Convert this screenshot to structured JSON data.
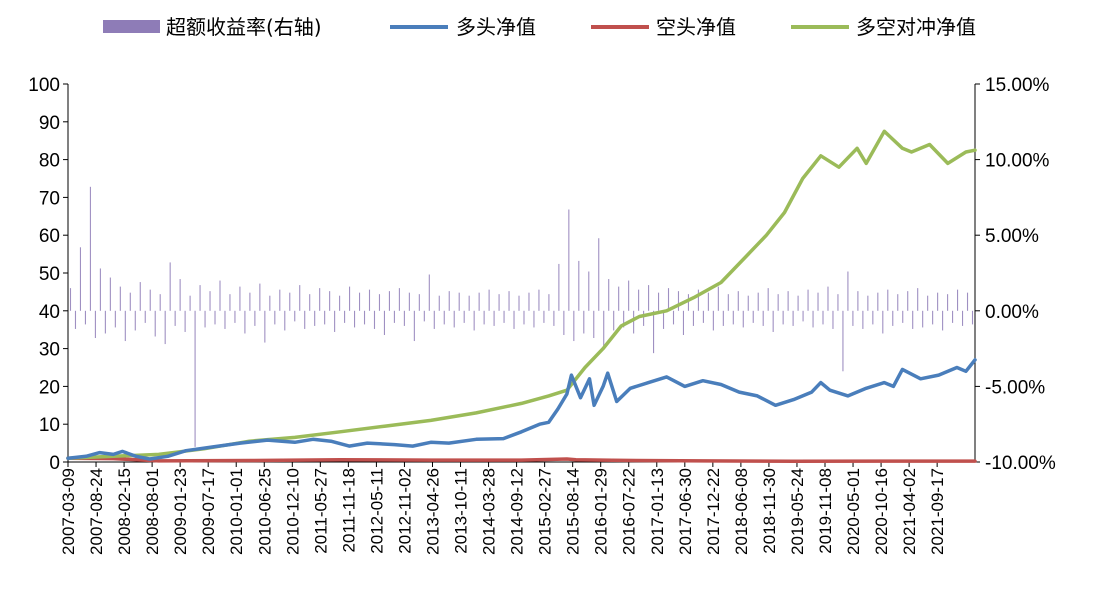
{
  "chart_data": {
    "type": "line",
    "legend_position": "top",
    "grid": false,
    "x_tick_labels": [
      "2007-03-09",
      "2007-08-24",
      "2008-02-15",
      "2008-08-01",
      "2009-01-23",
      "2009-07-17",
      "2010-01-01",
      "2010-06-25",
      "2010-12-10",
      "2011-05-27",
      "2011-11-18",
      "2012-05-11",
      "2012-11-02",
      "2013-04-26",
      "2013-10-11",
      "2014-03-28",
      "2014-09-12",
      "2015-02-27",
      "2015-08-14",
      "2016-01-29",
      "2016-07-22",
      "2017-01-13",
      "2017-06-30",
      "2017-12-22",
      "2018-06-08",
      "2018-11-30",
      "2019-05-24",
      "2019-11-08",
      "2020-05-01",
      "2020-10-16",
      "2021-04-02",
      "2021-09-17"
    ],
    "y_left": {
      "lim": [
        0,
        100
      ],
      "ticks": [
        "0",
        "10",
        "20",
        "30",
        "40",
        "50",
        "60",
        "70",
        "80",
        "90",
        "100"
      ]
    },
    "y_right": {
      "lim": [
        -10,
        15
      ],
      "ticks": [
        "-10.00%",
        "-5.00%",
        "0.00%",
        "5.00%",
        "10.00%",
        "15.00%"
      ]
    },
    "colors": {
      "excess": "#8e7cb7",
      "long": "#4a7ebb",
      "short": "#c0504d",
      "long_short": "#9bbb59"
    },
    "series": [
      {
        "name": "超额收益率(右轴)",
        "type": "bar",
        "axis": "right",
        "color": "#8e7cb7",
        "values": [
          1.5,
          -1.2,
          4.2,
          -0.9,
          8.2,
          -1.8,
          2.8,
          -1.5,
          2.2,
          -1.1,
          1.6,
          -2.0,
          1.2,
          -1.3,
          1.9,
          -0.8,
          1.4,
          -1.7,
          1.1,
          -2.2,
          3.2,
          -1.0,
          2.1,
          -1.4,
          1.0,
          -9.0,
          1.7,
          -1.1,
          1.3,
          -0.9,
          2.0,
          -1.2,
          1.1,
          -0.8,
          1.6,
          -1.5,
          1.2,
          -1.0,
          1.8,
          -2.1,
          1.0,
          -0.9,
          1.4,
          -1.3,
          1.2,
          -0.7,
          1.7,
          -1.2,
          1.1,
          -1.0,
          1.5,
          -0.9,
          1.3,
          -1.4,
          1.0,
          -0.8,
          1.6,
          -1.1,
          1.2,
          -0.9,
          1.4,
          -1.2,
          1.1,
          -1.6,
          1.3,
          -0.8,
          1.5,
          -1.0,
          1.2,
          -2.0,
          1.1,
          -0.7,
          2.4,
          -1.2,
          1.0,
          -0.9,
          1.3,
          -1.1,
          1.2,
          -0.8,
          1.0,
          -1.3,
          1.2,
          -0.9,
          1.4,
          -1.0,
          1.1,
          -0.8,
          1.3,
          -1.2,
          1.0,
          -0.9,
          1.2,
          -1.1,
          1.4,
          -0.8,
          1.1,
          -1.0,
          3.1,
          -1.6,
          6.7,
          -2.0,
          3.3,
          -1.5,
          2.6,
          -1.8,
          4.8,
          -2.4,
          2.1,
          -1.3,
          1.6,
          -1.1,
          2.0,
          -1.5,
          1.4,
          -1.0,
          1.7,
          -2.8,
          1.2,
          -1.2,
          1.5,
          -0.9,
          1.3,
          -1.6,
          1.1,
          -1.0,
          1.4,
          -0.8,
          1.2,
          -1.3,
          1.6,
          -1.0,
          1.1,
          -0.9,
          1.3,
          -1.1,
          1.0,
          -0.8,
          1.2,
          -1.0,
          1.5,
          -1.4,
          1.1,
          -0.9,
          1.3,
          -1.0,
          1.0,
          -0.7,
          1.4,
          -1.1,
          1.2,
          -0.9,
          1.6,
          -1.2,
          1.1,
          -4.0,
          2.6,
          -1.0,
          1.3,
          -1.2,
          1.0,
          -0.9,
          1.2,
          -1.5,
          1.4,
          -1.0,
          1.1,
          -0.8,
          1.3,
          -1.2,
          1.5,
          -1.1,
          1.0,
          -0.9,
          1.2,
          -1.3,
          1.1,
          -0.8,
          1.4,
          -1.0,
          1.2,
          -0.9
        ]
      },
      {
        "name": "多头净值",
        "type": "line",
        "axis": "left",
        "color": "#4a7ebb",
        "points": [
          [
            0,
            1
          ],
          [
            0.02,
            1.5
          ],
          [
            0.035,
            2.5
          ],
          [
            0.05,
            2.0
          ],
          [
            0.06,
            2.8
          ],
          [
            0.075,
            1.5
          ],
          [
            0.09,
            0.8
          ],
          [
            0.11,
            1.5
          ],
          [
            0.13,
            3.0
          ],
          [
            0.16,
            4.0
          ],
          [
            0.19,
            5.0
          ],
          [
            0.22,
            5.8
          ],
          [
            0.25,
            5.2
          ],
          [
            0.27,
            6.0
          ],
          [
            0.29,
            5.5
          ],
          [
            0.31,
            4.2
          ],
          [
            0.33,
            5.0
          ],
          [
            0.36,
            4.6
          ],
          [
            0.38,
            4.2
          ],
          [
            0.4,
            5.2
          ],
          [
            0.42,
            5.0
          ],
          [
            0.45,
            6.0
          ],
          [
            0.48,
            6.2
          ],
          [
            0.5,
            8.0
          ],
          [
            0.52,
            10.0
          ],
          [
            0.53,
            10.5
          ],
          [
            0.54,
            14.0
          ],
          [
            0.55,
            18.0
          ],
          [
            0.555,
            23.0
          ],
          [
            0.565,
            17.0
          ],
          [
            0.575,
            22.0
          ],
          [
            0.58,
            15.0
          ],
          [
            0.59,
            20.0
          ],
          [
            0.595,
            23.5
          ],
          [
            0.605,
            16.0
          ],
          [
            0.62,
            19.5
          ],
          [
            0.64,
            21.0
          ],
          [
            0.66,
            22.5
          ],
          [
            0.68,
            20.0
          ],
          [
            0.7,
            21.5
          ],
          [
            0.72,
            20.5
          ],
          [
            0.74,
            18.5
          ],
          [
            0.76,
            17.5
          ],
          [
            0.78,
            15.0
          ],
          [
            0.8,
            16.5
          ],
          [
            0.82,
            18.5
          ],
          [
            0.83,
            21.0
          ],
          [
            0.84,
            19.0
          ],
          [
            0.86,
            17.5
          ],
          [
            0.88,
            19.5
          ],
          [
            0.9,
            21.0
          ],
          [
            0.91,
            20.0
          ],
          [
            0.92,
            24.5
          ],
          [
            0.94,
            22.0
          ],
          [
            0.96,
            23.0
          ],
          [
            0.98,
            25.0
          ],
          [
            0.99,
            24.0
          ],
          [
            1.0,
            27.0
          ]
        ]
      },
      {
        "name": "空头净值",
        "type": "line",
        "axis": "left",
        "color": "#c0504d",
        "points": [
          [
            0,
            1
          ],
          [
            0.05,
            0.9
          ],
          [
            0.1,
            0.3
          ],
          [
            0.2,
            0.4
          ],
          [
            0.3,
            0.6
          ],
          [
            0.4,
            0.5
          ],
          [
            0.5,
            0.5
          ],
          [
            0.55,
            0.8
          ],
          [
            0.56,
            0.6
          ],
          [
            0.6,
            0.45
          ],
          [
            0.7,
            0.3
          ],
          [
            0.8,
            0.2
          ],
          [
            0.9,
            0.25
          ],
          [
            1.0,
            0.25
          ]
        ]
      },
      {
        "name": "多空对冲净值",
        "type": "line",
        "axis": "left",
        "color": "#9bbb59",
        "points": [
          [
            0,
            1
          ],
          [
            0.05,
            1.5
          ],
          [
            0.1,
            2.0
          ],
          [
            0.15,
            3.5
          ],
          [
            0.2,
            5.5
          ],
          [
            0.25,
            6.5
          ],
          [
            0.3,
            8.0
          ],
          [
            0.35,
            9.5
          ],
          [
            0.4,
            11.0
          ],
          [
            0.45,
            13.0
          ],
          [
            0.5,
            15.5
          ],
          [
            0.53,
            17.5
          ],
          [
            0.55,
            19.0
          ],
          [
            0.57,
            25.0
          ],
          [
            0.59,
            30.0
          ],
          [
            0.61,
            36.0
          ],
          [
            0.63,
            38.5
          ],
          [
            0.66,
            40.0
          ],
          [
            0.69,
            43.5
          ],
          [
            0.72,
            47.5
          ],
          [
            0.75,
            55.0
          ],
          [
            0.77,
            60.0
          ],
          [
            0.79,
            66.0
          ],
          [
            0.81,
            75.0
          ],
          [
            0.83,
            81.0
          ],
          [
            0.85,
            78.0
          ],
          [
            0.87,
            83.0
          ],
          [
            0.88,
            79.0
          ],
          [
            0.9,
            87.5
          ],
          [
            0.92,
            83.0
          ],
          [
            0.93,
            82.0
          ],
          [
            0.95,
            84.0
          ],
          [
            0.97,
            79.0
          ],
          [
            0.99,
            82.0
          ],
          [
            1.0,
            82.5
          ]
        ]
      }
    ]
  }
}
